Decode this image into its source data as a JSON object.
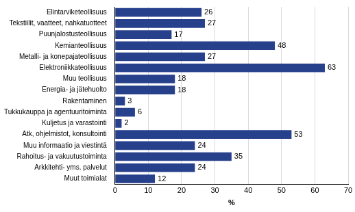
{
  "chart_data": {
    "type": "bar",
    "orientation": "horizontal",
    "categories": [
      "Elintarviketeollisuus",
      "Tekstiilit, vaatteet, nahkatuotteet",
      "Puunjalostusteollisuus",
      "Kemianteollisuus",
      "Metalli- ja konepajateollisuus",
      "Elektroniikkateollisuus",
      "Muu teollisuus",
      "Energia- ja jätehuolto",
      "Rakentaminen",
      "Tukkukauppa ja agentuuritoiminta",
      "Kuljetus ja varastointi",
      "Atk, ohjelmistot, konsultointi",
      "Muu informaatio ja viestintä",
      "Rahoitus- ja vakuutustoiminta",
      "Arkkitehti- yms. palvelut",
      "Muut toimialat"
    ],
    "values": [
      26,
      27,
      17,
      48,
      27,
      63,
      18,
      18,
      3,
      6,
      2,
      53,
      24,
      35,
      24,
      12
    ],
    "color": "#27408b",
    "xlabel": "%",
    "xlim": [
      0,
      70
    ],
    "xticks": [
      0,
      10,
      20,
      30,
      40,
      50,
      60,
      70
    ],
    "grid": true,
    "data_labels": true
  }
}
